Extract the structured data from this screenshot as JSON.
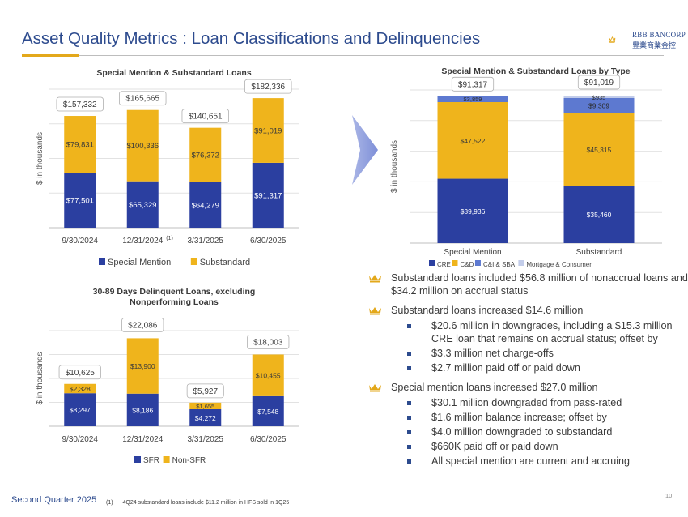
{
  "header": {
    "title": "Asset Quality Metrics : Loan Classifications and Delinquencies",
    "logo_name": "RBB BANCORP",
    "logo_chinese": "豐業商業金控"
  },
  "colors": {
    "navy": "#2b3fa0",
    "gold": "#efb41c",
    "slate": "#5d79d0",
    "lavender": "#c3cdea",
    "title_blue": "#2d4b8e",
    "accent_gold": "#e3a81b"
  },
  "chart_data": [
    {
      "id": "special-substandard",
      "type": "bar",
      "stacked": true,
      "title": "Special Mention & Substandard  Loans",
      "ylabel": "$ in thousands",
      "categories": [
        "9/30/2024",
        "12/31/2024",
        "3/31/2025",
        "6/30/2025"
      ],
      "category_superscript": [
        "",
        "(1)",
        "",
        ""
      ],
      "series": [
        {
          "name": "Special Mention",
          "values": [
            77501,
            65329,
            64279,
            91317
          ],
          "labels": [
            "$77,501",
            "$65,329",
            "$64,279",
            "$91,317"
          ]
        },
        {
          "name": "Substandard",
          "values": [
            79831,
            100336,
            76372,
            91019
          ],
          "labels": [
            "$79,831",
            "$100,336",
            "$76,372",
            "$91,019"
          ]
        }
      ],
      "totals": [
        "$157,332",
        "$165,665",
        "$140,651",
        "$182,336"
      ],
      "ylim": [
        0,
        195000
      ]
    },
    {
      "id": "delinquent",
      "type": "bar",
      "stacked": true,
      "title": "30-89 Days Delinquent Loans, excluding Nonperforming Loans",
      "title_lines": [
        "30-89 Days Delinquent Loans, excluding",
        "Nonperforming Loans"
      ],
      "ylabel": "$ in thousands",
      "categories": [
        "9/30/2024",
        "12/31/2024",
        "3/31/2025",
        "6/30/2025"
      ],
      "series": [
        {
          "name": "SFR",
          "values": [
            8297,
            8186,
            4272,
            7548
          ],
          "labels": [
            "$8,297",
            "$8,186",
            "$4,272",
            "$7,548"
          ]
        },
        {
          "name": "Non-SFR",
          "values": [
            2328,
            13900,
            1655,
            10455
          ],
          "labels": [
            "$2,328",
            "$13,900",
            "$1,655",
            "$10,455"
          ]
        }
      ],
      "totals": [
        "$10,625",
        "$22,086",
        "$5,927",
        "$18,003"
      ],
      "ylim": [
        0,
        24000
      ]
    },
    {
      "id": "by-type",
      "type": "bar",
      "stacked": true,
      "title": "Special Mention & Substandard  Loans by Type",
      "ylabel": "$ in thousands",
      "categories": [
        "Special Mention",
        "Substandard"
      ],
      "series": [
        {
          "name": "CRE",
          "values": [
            39936,
            35460
          ],
          "labels": [
            "$39,936",
            "$35,460"
          ]
        },
        {
          "name": "C&D",
          "values": [
            47522,
            45315
          ],
          "labels": [
            "$47,522",
            "$45,315"
          ]
        },
        {
          "name": "C&I & SBA",
          "values": [
            3859,
            9309
          ],
          "labels": [
            "$3,859",
            "$9,309"
          ]
        },
        {
          "name": "Mortgage & Consumer",
          "values": [
            0,
            935
          ],
          "labels": [
            "",
            "$935"
          ]
        }
      ],
      "totals": [
        "$91,317",
        "$91,019"
      ],
      "ylim": [
        0,
        95000
      ]
    }
  ],
  "bullets": [
    {
      "text": "Substandard loans included $56.8 million of nonaccrual loans and $34.2 million on accrual status",
      "sub": []
    },
    {
      "text": "Substandard loans increased $14.6 million",
      "sub": [
        "$20.6 million in downgrades, including a $15.3 million CRE loan that remains on accrual status; offset by",
        "$3.3 million net charge-offs",
        "$2.7 million paid off or paid down"
      ]
    },
    {
      "text": "Special mention loans increased $27.0 million",
      "sub": [
        "$30.1 million downgraded from pass-rated",
        "$1.6 million balance increase; offset by",
        "$4.0 million downgraded to substandard",
        "$660K paid off or paid down",
        "All special mention are current and accruing"
      ]
    }
  ],
  "footer": {
    "quarter": "Second Quarter 2025",
    "footnote_marker": "(1)",
    "footnote": "4Q24 substandard loans include $11.2 million in HFS sold in 1Q25",
    "page": "10"
  }
}
